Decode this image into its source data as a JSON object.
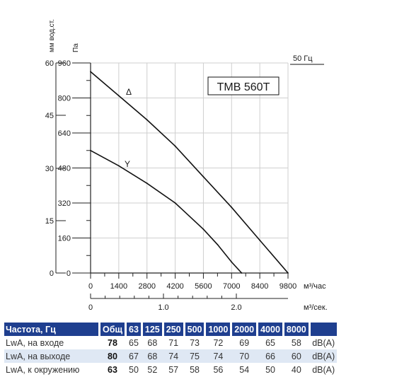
{
  "chart_data": {
    "type": "line",
    "model_label": "ТМВ 560Т",
    "frequency_label": "50 Гц",
    "left_axis_label": "мм вод.ст.",
    "left_axis_ticks": [
      "60",
      "45",
      "30",
      "15",
      "0"
    ],
    "y_unit": "Па",
    "x_unit": "м³/час",
    "x2_unit": "м³/сек.",
    "ylim": [
      0,
      960
    ],
    "xlim": [
      0,
      9800
    ],
    "y_ticks": [
      0,
      160,
      320,
      480,
      640,
      800,
      960
    ],
    "x_ticks": [
      0,
      1400,
      2800,
      4200,
      5600,
      7000,
      8400,
      9800
    ],
    "x2_ticks": [
      "0",
      "1.0",
      "2.0"
    ],
    "grid": true,
    "series": [
      {
        "name": "Δ",
        "x": [
          0,
          1400,
          2800,
          4200,
          5600,
          7000,
          8400,
          9800
        ],
        "y": [
          920,
          810,
          700,
          580,
          440,
          300,
          150,
          0
        ]
      },
      {
        "name": "Y",
        "x": [
          0,
          1400,
          2800,
          4200,
          5600,
          6300,
          7000,
          7500
        ],
        "y": [
          560,
          490,
          410,
          320,
          200,
          130,
          50,
          0
        ]
      }
    ]
  },
  "noise_table": {
    "headers": [
      "Частота, Гц",
      "Общ",
      "63",
      "125",
      "250",
      "500",
      "1000",
      "2000",
      "4000",
      "8000"
    ],
    "rows": [
      {
        "label": "LwA, на входе",
        "total": "78",
        "values": [
          "65",
          "68",
          "71",
          "73",
          "72",
          "69",
          "65",
          "58"
        ],
        "unit": "dB(A)"
      },
      {
        "label": "LwA, на выходе",
        "total": "80",
        "values": [
          "67",
          "68",
          "74",
          "75",
          "74",
          "70",
          "66",
          "60"
        ],
        "unit": "dB(A)"
      },
      {
        "label": "LwA, к окружению",
        "total": "63",
        "values": [
          "50",
          "52",
          "57",
          "58",
          "56",
          "54",
          "50",
          "40"
        ],
        "unit": "dB(A)"
      }
    ]
  },
  "colors": {
    "table_header_bg": "#1f3f8f",
    "table_shaded_row": "#dfe8f4"
  }
}
